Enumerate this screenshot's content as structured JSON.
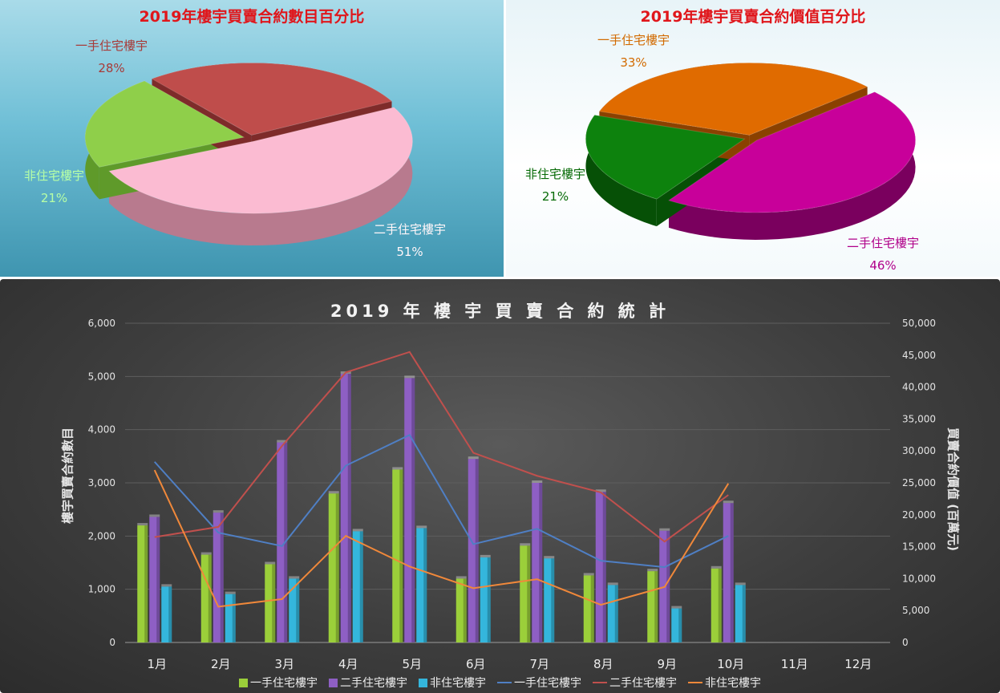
{
  "pie_charts": {
    "count": {
      "title": "2019年樓宇買賣合約數目百分比",
      "slices": [
        {
          "name": "二手住宅樓宇",
          "pct_label": "51%",
          "value": 51,
          "color": "#fbbbd2",
          "side": "#b87a8e"
        },
        {
          "name": "非住宅樓宇",
          "pct_label": "21%",
          "value": 21,
          "color": "#8fcf4a",
          "side": "#5f9a2a"
        },
        {
          "name": "一手住宅樓宇",
          "pct_label": "28%",
          "value": 28,
          "color": "#bf4d4b",
          "side": "#7e2b2a"
        }
      ],
      "label_colors": [
        "#fff6f9",
        "#b7ffa6",
        "#a83a38"
      ]
    },
    "value": {
      "title": "2019年樓宇買賣合約價值百分比",
      "slices": [
        {
          "name": "二手住宅樓宇",
          "pct_label": "46%",
          "value": 46,
          "color": "#c8009a",
          "side": "#7a005e"
        },
        {
          "name": "非住宅樓宇",
          "pct_label": "21%",
          "value": 21,
          "color": "#0d820d",
          "side": "#065006"
        },
        {
          "name": "一手住宅樓宇",
          "pct_label": "33%",
          "value": 33,
          "color": "#e06b00",
          "side": "#8a4100"
        }
      ],
      "label_colors": [
        "#b0008a",
        "#076b07",
        "#d26a00"
      ]
    }
  },
  "chart_data": {
    "type": "bar",
    "title": "2019 年 樓 宇 買 賣 合 約 統 計",
    "ylabel": "樓宇買賣合約數目",
    "ylabel_right": "買賣合約價值 (百萬元)",
    "categories": [
      "1月",
      "2月",
      "3月",
      "4月",
      "5月",
      "6月",
      "7月",
      "8月",
      "9月",
      "10月",
      "11月",
      "12月"
    ],
    "ylim": [
      0,
      6000
    ],
    "ylim_right": [
      0,
      50000
    ],
    "y_ticks": [
      "0",
      "1,000",
      "2,000",
      "3,000",
      "4,000",
      "5,000",
      "6,000"
    ],
    "y_ticks_right": [
      "0",
      "5,000",
      "10,000",
      "15,000",
      "20,000",
      "25,000",
      "30,000",
      "35,000",
      "40,000",
      "45,000",
      "50,000"
    ],
    "series": [
      {
        "name": "一手住宅樓宇",
        "kind": "bar",
        "axis": "left",
        "color": "#9bcf3a",
        "values": [
          2200,
          1650,
          1470,
          2800,
          3250,
          1200,
          1820,
          1260,
          1340,
          1390,
          null,
          null
        ]
      },
      {
        "name": "二手住宅樓宇",
        "kind": "bar",
        "axis": "left",
        "color": "#8e5fc4",
        "values": [
          2360,
          2440,
          3760,
          5050,
          4970,
          3450,
          3000,
          2830,
          2100,
          2620,
          null,
          null
        ]
      },
      {
        "name": "非住宅樓宇",
        "kind": "bar",
        "axis": "left",
        "color": "#34b6dc",
        "values": [
          1050,
          910,
          1200,
          2090,
          2150,
          1600,
          1580,
          1080,
          640,
          1080,
          null,
          null
        ]
      },
      {
        "name": "一手住宅樓宇",
        "kind": "line",
        "axis": "right",
        "color": "#4f7fc4",
        "values": [
          28300,
          17200,
          15100,
          27700,
          32500,
          15400,
          17800,
          12800,
          11800,
          16700,
          null,
          null
        ]
      },
      {
        "name": "二手住宅樓宇",
        "kind": "line",
        "axis": "right",
        "color": "#c0504d",
        "values": [
          16500,
          18100,
          30800,
          42300,
          45500,
          29700,
          26100,
          23500,
          15800,
          23100,
          null,
          null
        ]
      },
      {
        "name": "非住宅樓宇",
        "kind": "line",
        "axis": "right",
        "color": "#f0883a",
        "values": [
          27000,
          5600,
          6800,
          16700,
          11900,
          8500,
          9900,
          5900,
          8700,
          24900,
          null,
          null
        ]
      }
    ],
    "grid": true,
    "legend": "bottom"
  }
}
